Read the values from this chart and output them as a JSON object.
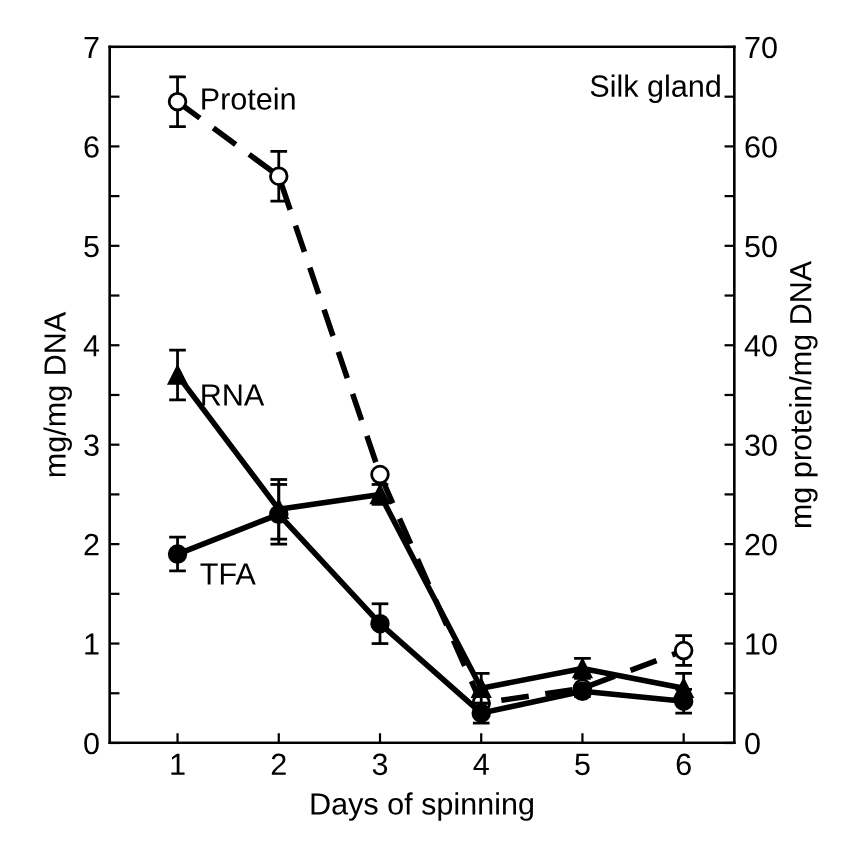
{
  "chart_data": {
    "type": "line",
    "xlabel": "Days of spinning",
    "ylabel": "mg/mg DNA",
    "y2label": "mg protein/mg DNA",
    "annotations": [
      "Silk gland"
    ],
    "x": [
      1,
      2,
      3,
      4,
      5,
      6
    ],
    "xlim": [
      0.33,
      6.5
    ],
    "xticks": [
      1,
      2,
      3,
      4,
      5,
      6
    ],
    "ylim": [
      0,
      7
    ],
    "yticks": [
      0,
      {
        "value": 0.5,
        "label": null
      },
      1,
      {
        "value": 1.5,
        "label": null
      },
      2,
      {
        "value": 2.5,
        "label": null
      },
      3,
      {
        "value": 3.5,
        "label": null
      },
      4,
      {
        "value": 4.5,
        "label": null
      },
      5,
      {
        "value": 5.5,
        "label": null
      },
      6,
      {
        "value": 6.5,
        "label": null
      },
      7
    ],
    "y2lim": [
      0,
      70
    ],
    "y2ticks": [
      0,
      {
        "value": 5,
        "label": null
      },
      10,
      {
        "value": 15,
        "label": null
      },
      20,
      {
        "value": 25,
        "label": null
      },
      30,
      {
        "value": 35,
        "label": null
      },
      40,
      {
        "value": 45,
        "label": null
      },
      50,
      {
        "value": 55,
        "label": null
      },
      60,
      {
        "value": 65,
        "label": null
      },
      70
    ],
    "grid": false,
    "legend": false,
    "series": [
      {
        "name": "Protein",
        "color": "#000000",
        "axis": "y2",
        "marker": "circle",
        "line_style": "dashed",
        "values": [
          64.5,
          57,
          27,
          4,
          5.5,
          9.3
        ],
        "errors": [
          2.5,
          2.5,
          null,
          null,
          null,
          1.5
        ]
      },
      {
        "name": "RNA",
        "color": "#000000",
        "marker": "triangle",
        "line_style": "solid",
        "values": [
          3.7,
          2.35,
          2.5,
          0.55,
          0.75,
          0.55
        ],
        "errors": [
          0.25,
          0.3,
          0.1,
          0.15,
          0.1,
          0.15
        ]
      },
      {
        "name": "TFA",
        "color": "#000000",
        "marker": "circle",
        "line_style": "solid",
        "values": [
          1.9,
          2.3,
          1.2,
          0.3,
          0.52,
          0.42
        ],
        "errors": [
          0.17,
          0.3,
          0.2,
          0.1,
          0.05,
          0.12
        ]
      }
    ]
  }
}
